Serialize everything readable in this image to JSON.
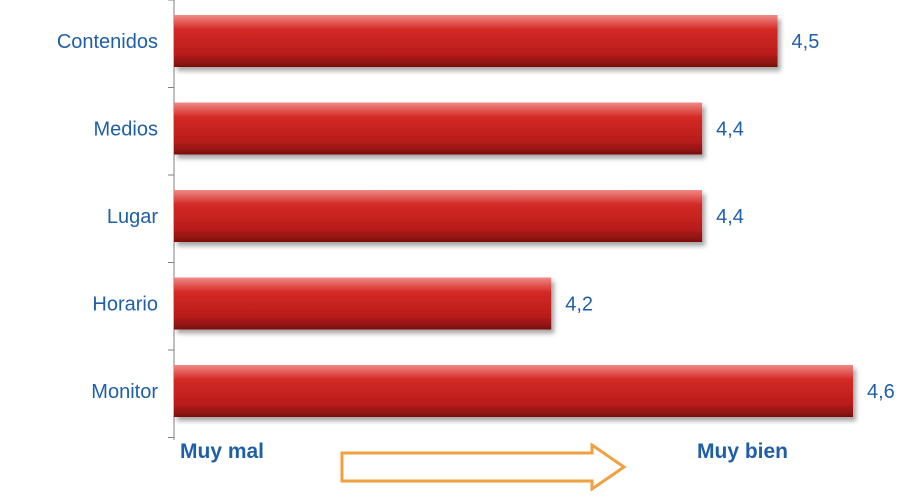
{
  "chart_data": {
    "type": "bar",
    "orientation": "horizontal",
    "categories": [
      "Contenidos",
      "Medios",
      "Lugar",
      "Horario",
      "Monitor"
    ],
    "values": [
      4.5,
      4.4,
      4.4,
      4.2,
      4.6
    ],
    "value_labels": [
      "4,5",
      "4,4",
      "4,4",
      "4,2",
      "4,6"
    ],
    "xlim": [
      3.7,
      4.6
    ],
    "bar_color": "#c8201e",
    "label_color": "#1f5fa8",
    "grid": false
  },
  "scale": {
    "low_label": "Muy mal",
    "high_label": "Muy bien",
    "arrow_color": "#f0a040"
  }
}
